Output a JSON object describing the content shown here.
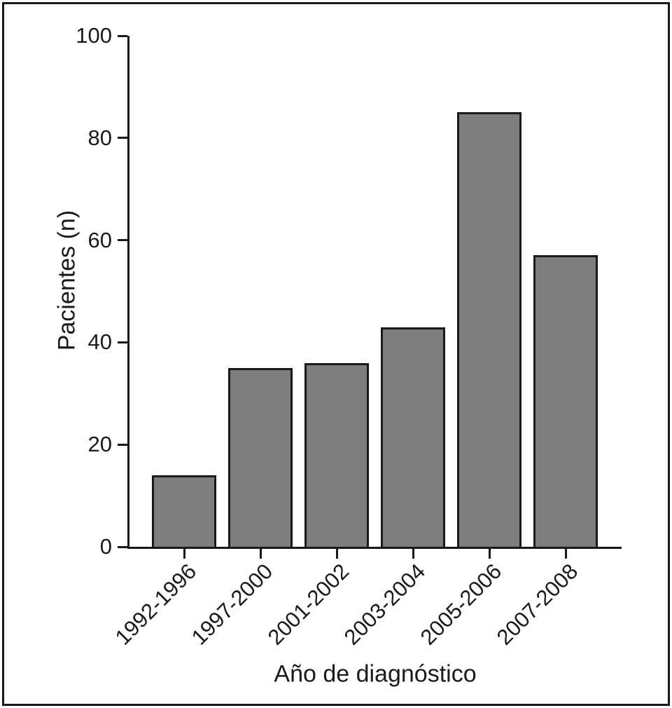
{
  "chart_data": {
    "type": "bar",
    "title": "",
    "xlabel": "Año de diagnóstico",
    "ylabel": "Pacientes (n)",
    "categories": [
      "1992-1996",
      "1997-2000",
      "2001-2002",
      "2003-2004",
      "2005-2006",
      "2007-2008"
    ],
    "values": [
      14,
      35,
      36,
      43,
      85,
      57
    ],
    "ylim": [
      0,
      100
    ],
    "yticks": [
      0,
      20,
      40,
      60,
      80,
      100
    ],
    "grid": false,
    "legend": "none",
    "colors": {
      "bar_fill": "#7d7d7d",
      "bar_stroke": "#1a1a1a",
      "axis": "#1a1a1a",
      "text": "#1a1a1a",
      "background": "#ffffff"
    }
  }
}
